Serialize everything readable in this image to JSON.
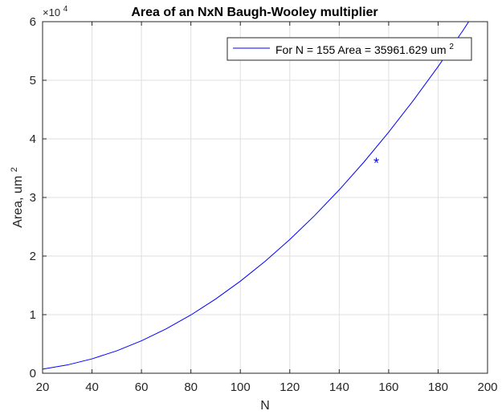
{
  "chart_data": {
    "type": "line",
    "title": "Area of an NxN Baugh-Wooley multiplier",
    "xlabel": "N",
    "ylabel": "Area, um",
    "ylabel_superscript": "2",
    "y_exponent_label": "×10",
    "y_exponent_power": "4",
    "xlim": [
      20,
      200
    ],
    "ylim": [
      0,
      60000
    ],
    "x_ticks": [
      20,
      40,
      60,
      80,
      100,
      120,
      140,
      160,
      180,
      200
    ],
    "y_ticks": [
      0,
      10000,
      20000,
      30000,
      40000,
      50000,
      60000
    ],
    "y_tick_labels": [
      "0",
      "1",
      "2",
      "3",
      "4",
      "5",
      "6"
    ],
    "grid": true,
    "legend_position": "top-right",
    "line_color": "#0000ff",
    "series": [
      {
        "name": "For N = 155 Area = 35961.629 um",
        "name_superscript": "2",
        "color": "#0000ff",
        "x": [
          20,
          30,
          40,
          50,
          60,
          70,
          80,
          90,
          100,
          110,
          120,
          130,
          140,
          150,
          155,
          160,
          170,
          180,
          190,
          200
        ],
        "y": [
          701,
          1414,
          2456,
          3829,
          5534,
          7574,
          9950,
          12662,
          15712,
          19099,
          22825,
          26891,
          31297,
          36045,
          35961.629,
          41135,
          46567,
          52342,
          58461,
          64923
        ]
      }
    ],
    "marker_point": {
      "x": 155,
      "y": 35961.629,
      "symbol": "*"
    }
  }
}
